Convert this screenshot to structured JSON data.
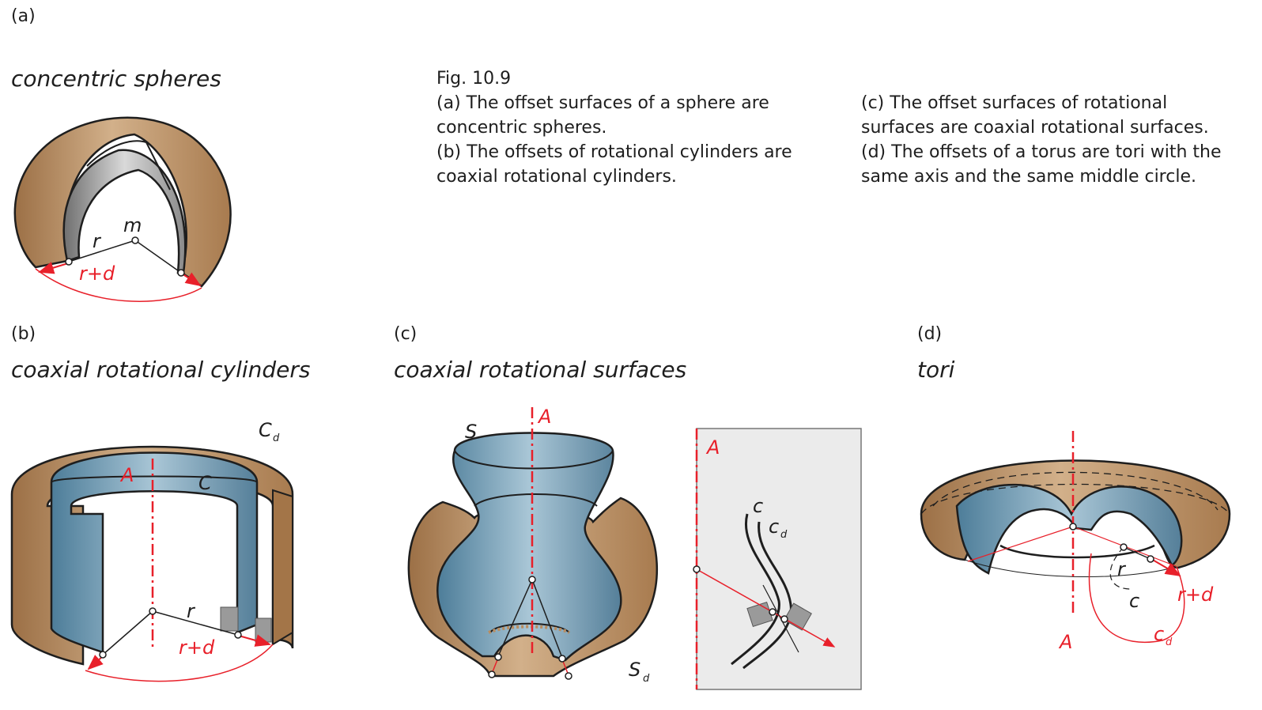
{
  "panels": {
    "a": {
      "label": "(a)",
      "title": "concentric spheres",
      "m": "m",
      "r": "r",
      "rd": "r+d"
    },
    "b": {
      "label": "(b)",
      "title": "coaxial rotational cylinders",
      "A": "A",
      "C": "C",
      "Cd": "C",
      "Cd_sub": "d",
      "r": "r",
      "rd": "r+d"
    },
    "c": {
      "label": "(c)",
      "title": "coaxial rotational surfaces",
      "A": "A",
      "S": "S",
      "Sd": "S",
      "Sd_sub": "d",
      "A2": "A",
      "c": "c",
      "cd": "c",
      "cd_sub": "d"
    },
    "d": {
      "label": "(d)",
      "title": "tori",
      "A": "A",
      "r": "r",
      "rd": "r+d",
      "c": "c",
      "cd": "c",
      "cd_sub": "d"
    }
  },
  "caption": {
    "fig": "Fig. 10.9",
    "a": "(a) The offset surfaces of a sphere are concentric spheres.",
    "b": "(b) The offsets of rotational cylinders are coaxial rotational cylinders.",
    "c": "(c) The offset surfaces of rotational surfaces are coaxial rotational surfaces.",
    "d": "(d) The offsets of a torus are tori with the same axis and the same middle circle."
  },
  "colors": {
    "brown": "#b98c5f",
    "blue": "#5b8aa6",
    "grey": "#8e8e8e",
    "red": "#e8202a"
  }
}
